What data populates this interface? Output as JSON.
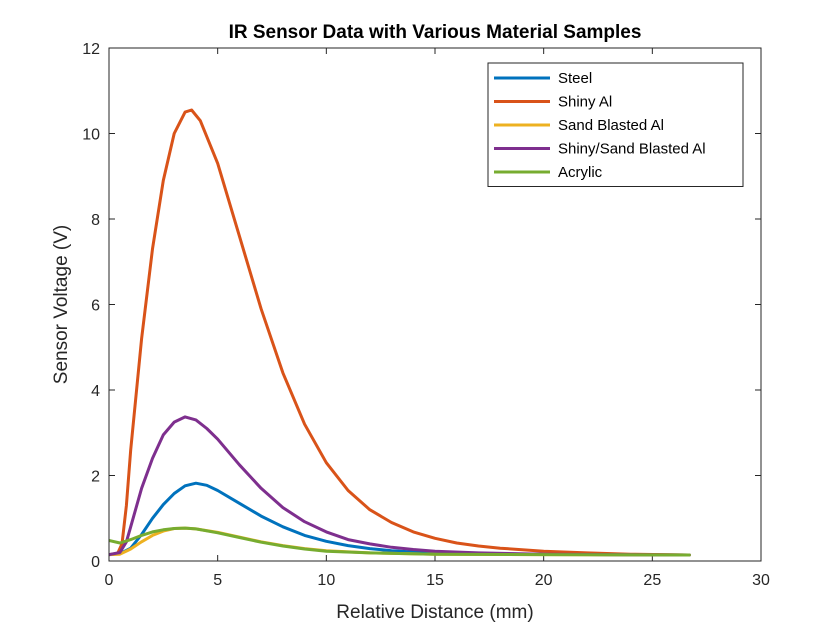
{
  "chart_data": {
    "type": "line",
    "title": "IR Sensor Data with Various Material Samples",
    "xlabel": "Relative Distance (mm)",
    "ylabel": "Sensor Voltage (V)",
    "xlim": [
      0,
      30
    ],
    "ylim": [
      0,
      12
    ],
    "xticks": [
      0,
      5,
      10,
      15,
      20,
      25,
      30
    ],
    "yticks": [
      0,
      2,
      4,
      6,
      8,
      10,
      12
    ],
    "grid": false,
    "legend_position": "top-right",
    "series": [
      {
        "name": "Steel",
        "color": "#0072BD",
        "points": [
          [
            0,
            0.15
          ],
          [
            0.5,
            0.17
          ],
          [
            1,
            0.3
          ],
          [
            1.5,
            0.62
          ],
          [
            2,
            1.0
          ],
          [
            2.5,
            1.32
          ],
          [
            3,
            1.58
          ],
          [
            3.5,
            1.76
          ],
          [
            4,
            1.82
          ],
          [
            4.5,
            1.77
          ],
          [
            5,
            1.65
          ],
          [
            6,
            1.35
          ],
          [
            7,
            1.05
          ],
          [
            8,
            0.8
          ],
          [
            9,
            0.6
          ],
          [
            10,
            0.46
          ],
          [
            11,
            0.36
          ],
          [
            12,
            0.29
          ],
          [
            13,
            0.24
          ],
          [
            14,
            0.21
          ],
          [
            15,
            0.19
          ],
          [
            17,
            0.17
          ],
          [
            20,
            0.16
          ],
          [
            23,
            0.15
          ],
          [
            26.7,
            0.14
          ]
        ]
      },
      {
        "name": "Shiny Al",
        "color": "#D95319",
        "points": [
          [
            0,
            0.15
          ],
          [
            0.4,
            0.18
          ],
          [
            0.6,
            0.4
          ],
          [
            0.8,
            1.3
          ],
          [
            1,
            2.6
          ],
          [
            1.5,
            5.2
          ],
          [
            2,
            7.3
          ],
          [
            2.5,
            8.9
          ],
          [
            3,
            10.0
          ],
          [
            3.5,
            10.5
          ],
          [
            3.8,
            10.55
          ],
          [
            4.2,
            10.3
          ],
          [
            5,
            9.3
          ],
          [
            6,
            7.6
          ],
          [
            7,
            5.9
          ],
          [
            8,
            4.4
          ],
          [
            9,
            3.2
          ],
          [
            10,
            2.3
          ],
          [
            11,
            1.65
          ],
          [
            12,
            1.2
          ],
          [
            13,
            0.9
          ],
          [
            14,
            0.68
          ],
          [
            15,
            0.53
          ],
          [
            16,
            0.42
          ],
          [
            17,
            0.35
          ],
          [
            18,
            0.3
          ],
          [
            20,
            0.23
          ],
          [
            22,
            0.19
          ],
          [
            24,
            0.16
          ],
          [
            26.7,
            0.14
          ]
        ]
      },
      {
        "name": "Sand Blasted Al",
        "color": "#EDB120",
        "points": [
          [
            0,
            0.15
          ],
          [
            0.5,
            0.16
          ],
          [
            1,
            0.28
          ],
          [
            1.5,
            0.45
          ],
          [
            2,
            0.6
          ],
          [
            2.5,
            0.7
          ],
          [
            3,
            0.76
          ],
          [
            3.5,
            0.77
          ],
          [
            4,
            0.75
          ],
          [
            5,
            0.67
          ],
          [
            6,
            0.56
          ],
          [
            7,
            0.45
          ],
          [
            8,
            0.36
          ],
          [
            9,
            0.29
          ],
          [
            10,
            0.24
          ],
          [
            12,
            0.19
          ],
          [
            15,
            0.16
          ],
          [
            20,
            0.15
          ],
          [
            26.7,
            0.14
          ]
        ]
      },
      {
        "name": "Shiny/Sand Blasted Al",
        "color": "#7E2F8E",
        "points": [
          [
            0,
            0.15
          ],
          [
            0.5,
            0.2
          ],
          [
            0.8,
            0.45
          ],
          [
            1,
            0.8
          ],
          [
            1.5,
            1.7
          ],
          [
            2,
            2.4
          ],
          [
            2.5,
            2.95
          ],
          [
            3,
            3.25
          ],
          [
            3.5,
            3.37
          ],
          [
            4,
            3.3
          ],
          [
            4.5,
            3.1
          ],
          [
            5,
            2.85
          ],
          [
            6,
            2.25
          ],
          [
            7,
            1.7
          ],
          [
            8,
            1.25
          ],
          [
            9,
            0.92
          ],
          [
            10,
            0.68
          ],
          [
            11,
            0.5
          ],
          [
            12,
            0.4
          ],
          [
            13,
            0.32
          ],
          [
            14,
            0.27
          ],
          [
            15,
            0.23
          ],
          [
            17,
            0.19
          ],
          [
            20,
            0.16
          ],
          [
            23,
            0.15
          ],
          [
            26.7,
            0.14
          ]
        ]
      },
      {
        "name": "Acrylic",
        "color": "#77AC30",
        "points": [
          [
            0,
            0.48
          ],
          [
            0.5,
            0.42
          ],
          [
            1,
            0.5
          ],
          [
            1.5,
            0.6
          ],
          [
            2,
            0.68
          ],
          [
            2.5,
            0.73
          ],
          [
            3,
            0.76
          ],
          [
            3.5,
            0.77
          ],
          [
            4,
            0.75
          ],
          [
            5,
            0.66
          ],
          [
            6,
            0.55
          ],
          [
            7,
            0.44
          ],
          [
            8,
            0.35
          ],
          [
            9,
            0.28
          ],
          [
            10,
            0.23
          ],
          [
            12,
            0.19
          ],
          [
            15,
            0.16
          ],
          [
            20,
            0.15
          ],
          [
            26.7,
            0.14
          ]
        ]
      }
    ]
  }
}
